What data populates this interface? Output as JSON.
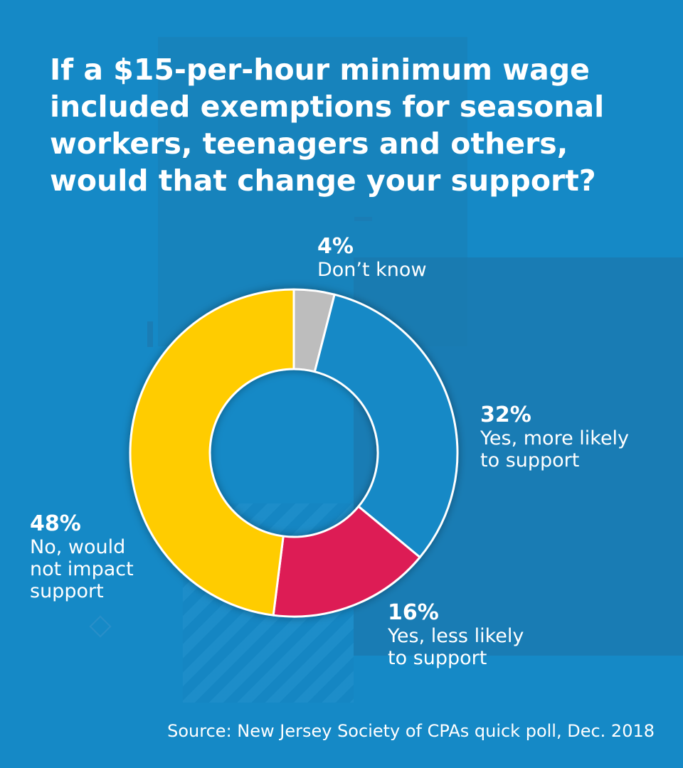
{
  "title": "If a $15-per-hour minimum wage included exemptions for seasonal workers, teenagers and others, would that change your support?",
  "source": "Source: New Jersey Society of CPAs quick poll, Dec. 2018",
  "chart_data": {
    "type": "pie",
    "style": "donut",
    "title": "If a $15-per-hour minimum wage included exemptions for seasonal workers, teenagers and others, would that change your support?",
    "slices": [
      {
        "label": "Don’t know",
        "value": 4,
        "display": "4%",
        "color": "#bdbdbd"
      },
      {
        "label": "Yes, more likely to support",
        "value": 32,
        "display": "32%",
        "color": "#1589c6"
      },
      {
        "label": "Yes, less likely to support",
        "value": 16,
        "display": "16%",
        "color": "#dd1f55"
      },
      {
        "label": "No, would not impact support",
        "value": 48,
        "display": "48%",
        "color": "#ffcc00"
      }
    ],
    "label_lines": [
      [
        "Don’t know"
      ],
      [
        "Yes, more likely",
        "to support"
      ],
      [
        "Yes, less likely",
        "to support"
      ],
      [
        "No, would",
        "not impact",
        "support"
      ]
    ]
  }
}
